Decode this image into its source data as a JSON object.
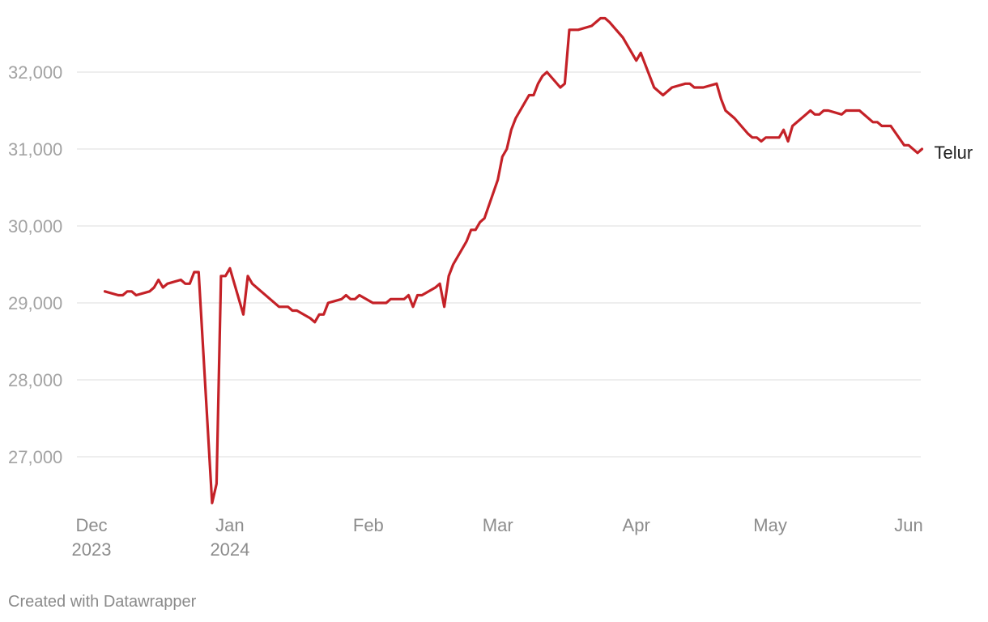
{
  "footer": {
    "credit": "Created with Datawrapper"
  },
  "chart_data": {
    "type": "line",
    "xlim": [
      "2023-12-01",
      "2024-06-01"
    ],
    "ylim": [
      26500,
      32500
    ],
    "y_ticks": [
      27000,
      28000,
      29000,
      30000,
      31000,
      32000
    ],
    "y_tick_labels": [
      "27,000",
      "28,000",
      "29,000",
      "30,000",
      "31,000",
      "32,000"
    ],
    "x_ticks": [
      {
        "date": "2023-12-01",
        "label": "Dec",
        "sublabel": "2023"
      },
      {
        "date": "2024-01-01",
        "label": "Jan",
        "sublabel": "2024"
      },
      {
        "date": "2024-02-01",
        "label": "Feb",
        "sublabel": ""
      },
      {
        "date": "2024-03-01",
        "label": "Mar",
        "sublabel": ""
      },
      {
        "date": "2024-04-01",
        "label": "Apr",
        "sublabel": ""
      },
      {
        "date": "2024-05-01",
        "label": "May",
        "sublabel": ""
      },
      {
        "date": "2024-06-01",
        "label": "Jun",
        "sublabel": ""
      }
    ],
    "grid": true,
    "series": [
      {
        "name": "Telur",
        "color": "#c42127",
        "points": [
          [
            "2023-12-04",
            29150
          ],
          [
            "2023-12-07",
            29100
          ],
          [
            "2023-12-08",
            29100
          ],
          [
            "2023-12-09",
            29150
          ],
          [
            "2023-12-10",
            29150
          ],
          [
            "2023-12-11",
            29100
          ],
          [
            "2023-12-14",
            29150
          ],
          [
            "2023-12-15",
            29200
          ],
          [
            "2023-12-16",
            29300
          ],
          [
            "2023-12-17",
            29200
          ],
          [
            "2023-12-18",
            29250
          ],
          [
            "2023-12-21",
            29300
          ],
          [
            "2023-12-22",
            29250
          ],
          [
            "2023-12-23",
            29250
          ],
          [
            "2023-12-24",
            29400
          ],
          [
            "2023-12-25",
            29400
          ],
          [
            "2023-12-28",
            26400
          ],
          [
            "2023-12-29",
            26650
          ],
          [
            "2023-12-30",
            29350
          ],
          [
            "2023-12-31",
            29350
          ],
          [
            "2024-01-01",
            29450
          ],
          [
            "2024-01-04",
            28850
          ],
          [
            "2024-01-05",
            29350
          ],
          [
            "2024-01-06",
            29250
          ],
          [
            "2024-01-08",
            29150
          ],
          [
            "2024-01-12",
            28950
          ],
          [
            "2024-01-14",
            28950
          ],
          [
            "2024-01-15",
            28900
          ],
          [
            "2024-01-16",
            28900
          ],
          [
            "2024-01-19",
            28800
          ],
          [
            "2024-01-20",
            28750
          ],
          [
            "2024-01-21",
            28850
          ],
          [
            "2024-01-22",
            28850
          ],
          [
            "2024-01-23",
            29000
          ],
          [
            "2024-01-26",
            29050
          ],
          [
            "2024-01-27",
            29100
          ],
          [
            "2024-01-28",
            29050
          ],
          [
            "2024-01-29",
            29050
          ],
          [
            "2024-01-30",
            29100
          ],
          [
            "2024-02-02",
            29000
          ],
          [
            "2024-02-05",
            29000
          ],
          [
            "2024-02-06",
            29050
          ],
          [
            "2024-02-09",
            29050
          ],
          [
            "2024-02-10",
            29100
          ],
          [
            "2024-02-11",
            28950
          ],
          [
            "2024-02-12",
            29100
          ],
          [
            "2024-02-13",
            29100
          ],
          [
            "2024-02-16",
            29200
          ],
          [
            "2024-02-17",
            29250
          ],
          [
            "2024-02-18",
            28950
          ],
          [
            "2024-02-19",
            29350
          ],
          [
            "2024-02-20",
            29500
          ],
          [
            "2024-02-23",
            29800
          ],
          [
            "2024-02-24",
            29950
          ],
          [
            "2024-02-25",
            29950
          ],
          [
            "2024-02-26",
            30050
          ],
          [
            "2024-02-27",
            30100
          ],
          [
            "2024-03-01",
            30600
          ],
          [
            "2024-03-02",
            30900
          ],
          [
            "2024-03-03",
            31000
          ],
          [
            "2024-03-04",
            31250
          ],
          [
            "2024-03-05",
            31400
          ],
          [
            "2024-03-08",
            31700
          ],
          [
            "2024-03-09",
            31700
          ],
          [
            "2024-03-10",
            31850
          ],
          [
            "2024-03-11",
            31950
          ],
          [
            "2024-03-12",
            32000
          ],
          [
            "2024-03-15",
            31800
          ],
          [
            "2024-03-16",
            31850
          ],
          [
            "2024-03-17",
            32550
          ],
          [
            "2024-03-19",
            32550
          ],
          [
            "2024-03-22",
            32600
          ],
          [
            "2024-03-24",
            32700
          ],
          [
            "2024-03-25",
            32700
          ],
          [
            "2024-03-26",
            32650
          ],
          [
            "2024-03-29",
            32450
          ],
          [
            "2024-04-01",
            32150
          ],
          [
            "2024-04-02",
            32250
          ],
          [
            "2024-04-05",
            31800
          ],
          [
            "2024-04-07",
            31700
          ],
          [
            "2024-04-09",
            31800
          ],
          [
            "2024-04-12",
            31850
          ],
          [
            "2024-04-13",
            31850
          ],
          [
            "2024-04-14",
            31800
          ],
          [
            "2024-04-16",
            31800
          ],
          [
            "2024-04-19",
            31850
          ],
          [
            "2024-04-20",
            31650
          ],
          [
            "2024-04-21",
            31500
          ],
          [
            "2024-04-23",
            31400
          ],
          [
            "2024-04-26",
            31200
          ],
          [
            "2024-04-27",
            31150
          ],
          [
            "2024-04-28",
            31150
          ],
          [
            "2024-04-29",
            31100
          ],
          [
            "2024-04-30",
            31150
          ],
          [
            "2024-05-03",
            31150
          ],
          [
            "2024-05-04",
            31250
          ],
          [
            "2024-05-05",
            31100
          ],
          [
            "2024-05-06",
            31300
          ],
          [
            "2024-05-09",
            31450
          ],
          [
            "2024-05-10",
            31500
          ],
          [
            "2024-05-11",
            31450
          ],
          [
            "2024-05-12",
            31450
          ],
          [
            "2024-05-13",
            31500
          ],
          [
            "2024-05-14",
            31500
          ],
          [
            "2024-05-17",
            31450
          ],
          [
            "2024-05-18",
            31500
          ],
          [
            "2024-05-21",
            31500
          ],
          [
            "2024-05-24",
            31350
          ],
          [
            "2024-05-25",
            31350
          ],
          [
            "2024-05-26",
            31300
          ],
          [
            "2024-05-28",
            31300
          ],
          [
            "2024-05-31",
            31050
          ],
          [
            "2024-06-01",
            31050
          ],
          [
            "2024-06-03",
            30950
          ],
          [
            "2024-06-04",
            31000
          ]
        ]
      }
    ]
  }
}
